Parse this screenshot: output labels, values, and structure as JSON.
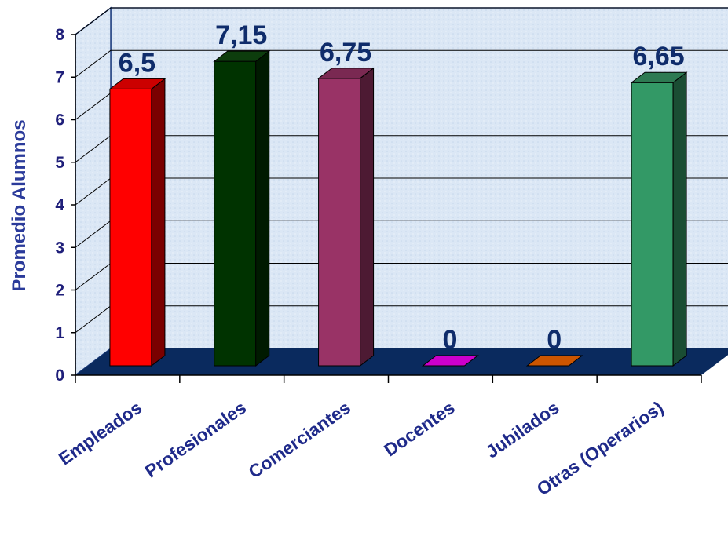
{
  "chart_data": {
    "type": "bar",
    "title": "",
    "xlabel": "",
    "ylabel": "Promedio Alumnos",
    "ylim": [
      0,
      8
    ],
    "yticks": [
      "0",
      "1",
      "2",
      "3",
      "4",
      "5",
      "6",
      "7",
      "8"
    ],
    "grid": true,
    "categories": [
      "Empleados",
      "Profesionales",
      "Comerciantes",
      "Docentes",
      "Jubilados",
      "Otras (Operarios)"
    ],
    "values": [
      6.5,
      7.15,
      6.75,
      0,
      0,
      6.65
    ],
    "value_labels": [
      "6,5",
      "7,15",
      "6,75",
      "0",
      "0",
      "6,65"
    ],
    "colors": [
      "#ff0000",
      "#003300",
      "#993366",
      "#cc00cc",
      "#cc5500",
      "#339966"
    ],
    "side_colors": [
      "#7a0000",
      "#001a00",
      "#4d1a33",
      "#660066",
      "#662a00",
      "#1a4d33"
    ],
    "top_colors": [
      "#cc0000",
      "#0d3d0d",
      "#7a2952",
      "#b300b3",
      "#b34a00",
      "#2e7a52"
    ],
    "wall_color": "#dbe7f5",
    "floor_color": "#0a2a5e"
  }
}
